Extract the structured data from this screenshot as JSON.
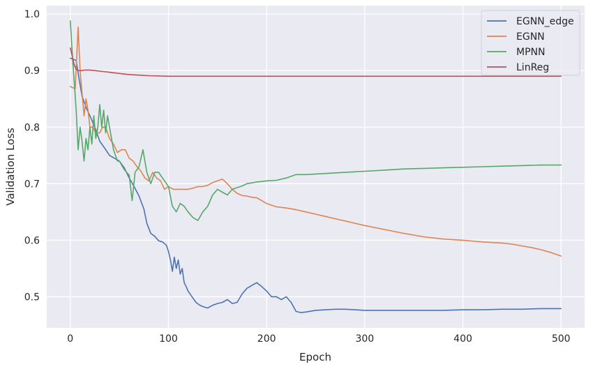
{
  "chart_data": {
    "type": "line",
    "title": "",
    "xlabel": "Epoch",
    "ylabel": "Validation Loss",
    "xlim": [
      -24,
      524
    ],
    "ylim": [
      0.445,
      1.015
    ],
    "xticks": [
      0,
      100,
      200,
      300,
      400,
      500
    ],
    "yticks": [
      0.5,
      0.6,
      0.7,
      0.8,
      0.9,
      1.0
    ],
    "xtick_labels": [
      "0",
      "100",
      "200",
      "300",
      "400",
      "500"
    ],
    "ytick_labels": [
      "0.5",
      "0.6",
      "0.7",
      "0.8",
      "0.9",
      "1.0"
    ],
    "grid": true,
    "legend_position": "top-right",
    "series": [
      {
        "name": "EGNN_edge",
        "color": "#4c72b0",
        "x": [
          0,
          3,
          6,
          9,
          12,
          16,
          20,
          25,
          30,
          35,
          40,
          45,
          50,
          55,
          60,
          65,
          70,
          75,
          78,
          82,
          86,
          90,
          94,
          98,
          100,
          102,
          104,
          106,
          108,
          110,
          112,
          114,
          116,
          118,
          120,
          124,
          128,
          132,
          136,
          140,
          145,
          150,
          155,
          160,
          165,
          170,
          175,
          180,
          185,
          190,
          195,
          200,
          205,
          210,
          215,
          220,
          225,
          230,
          235,
          240,
          250,
          260,
          270,
          280,
          290,
          300,
          320,
          340,
          360,
          380,
          400,
          420,
          440,
          460,
          480,
          500
        ],
        "values": [
          0.922,
          0.92,
          0.918,
          0.885,
          0.855,
          0.835,
          0.82,
          0.8,
          0.775,
          0.763,
          0.75,
          0.745,
          0.74,
          0.728,
          0.71,
          0.695,
          0.678,
          0.655,
          0.63,
          0.612,
          0.607,
          0.599,
          0.597,
          0.591,
          0.58,
          0.565,
          0.545,
          0.57,
          0.55,
          0.565,
          0.54,
          0.55,
          0.525,
          0.518,
          0.51,
          0.5,
          0.49,
          0.485,
          0.482,
          0.48,
          0.485,
          0.488,
          0.49,
          0.495,
          0.488,
          0.49,
          0.505,
          0.515,
          0.52,
          0.525,
          0.518,
          0.51,
          0.5,
          0.5,
          0.495,
          0.5,
          0.49,
          0.474,
          0.472,
          0.473,
          0.476,
          0.477,
          0.478,
          0.478,
          0.477,
          0.476,
          0.476,
          0.476,
          0.476,
          0.476,
          0.477,
          0.477,
          0.478,
          0.478,
          0.479,
          0.479
        ]
      },
      {
        "name": "EGNN",
        "color": "#dd8452",
        "x": [
          0,
          2,
          5,
          8,
          10,
          12,
          14,
          16,
          18,
          20,
          23,
          26,
          30,
          33,
          36,
          40,
          44,
          48,
          52,
          56,
          60,
          64,
          68,
          72,
          76,
          80,
          84,
          88,
          92,
          96,
          100,
          105,
          110,
          115,
          120,
          125,
          130,
          135,
          140,
          145,
          150,
          155,
          160,
          165,
          170,
          175,
          180,
          185,
          190,
          195,
          200,
          210,
          220,
          230,
          240,
          250,
          260,
          270,
          280,
          290,
          300,
          320,
          340,
          360,
          380,
          400,
          420,
          440,
          450,
          460,
          470,
          480,
          490,
          500
        ],
        "values": [
          0.872,
          0.87,
          0.868,
          0.977,
          0.9,
          0.86,
          0.82,
          0.85,
          0.83,
          0.8,
          0.8,
          0.79,
          0.79,
          0.8,
          0.8,
          0.78,
          0.77,
          0.755,
          0.76,
          0.76,
          0.745,
          0.74,
          0.73,
          0.722,
          0.71,
          0.705,
          0.72,
          0.71,
          0.705,
          0.69,
          0.695,
          0.69,
          0.69,
          0.69,
          0.69,
          0.692,
          0.695,
          0.695,
          0.697,
          0.702,
          0.705,
          0.708,
          0.7,
          0.69,
          0.683,
          0.679,
          0.678,
          0.676,
          0.675,
          0.67,
          0.665,
          0.659,
          0.657,
          0.654,
          0.65,
          0.646,
          0.642,
          0.638,
          0.634,
          0.63,
          0.626,
          0.619,
          0.612,
          0.606,
          0.602,
          0.6,
          0.597,
          0.595,
          0.593,
          0.59,
          0.587,
          0.583,
          0.578,
          0.572
        ]
      },
      {
        "name": "MPNN",
        "color": "#55a868",
        "x": [
          0,
          2,
          4,
          6,
          8,
          10,
          12,
          14,
          16,
          18,
          20,
          22,
          24,
          26,
          28,
          30,
          32,
          34,
          36,
          38,
          40,
          42,
          44,
          46,
          48,
          50,
          55,
          60,
          63,
          66,
          70,
          74,
          78,
          82,
          86,
          90,
          94,
          98,
          100,
          104,
          108,
          112,
          116,
          120,
          125,
          130,
          135,
          140,
          145,
          150,
          155,
          160,
          165,
          170,
          175,
          180,
          190,
          200,
          210,
          220,
          230,
          240,
          260,
          280,
          300,
          320,
          340,
          360,
          380,
          400,
          420,
          440,
          460,
          480,
          500
        ],
        "values": [
          0.988,
          0.93,
          0.88,
          0.83,
          0.76,
          0.8,
          0.775,
          0.74,
          0.78,
          0.76,
          0.8,
          0.77,
          0.82,
          0.78,
          0.8,
          0.84,
          0.8,
          0.83,
          0.79,
          0.82,
          0.8,
          0.78,
          0.76,
          0.75,
          0.74,
          0.74,
          0.725,
          0.715,
          0.67,
          0.72,
          0.73,
          0.76,
          0.72,
          0.7,
          0.72,
          0.72,
          0.71,
          0.7,
          0.695,
          0.66,
          0.65,
          0.665,
          0.66,
          0.65,
          0.64,
          0.635,
          0.65,
          0.66,
          0.68,
          0.69,
          0.685,
          0.68,
          0.69,
          0.693,
          0.696,
          0.7,
          0.703,
          0.705,
          0.706,
          0.71,
          0.716,
          0.716,
          0.718,
          0.72,
          0.722,
          0.724,
          0.726,
          0.727,
          0.728,
          0.729,
          0.73,
          0.731,
          0.732,
          0.733,
          0.733
        ]
      },
      {
        "name": "LinReg",
        "color": "#c44e52",
        "x": [
          0,
          2,
          4,
          6,
          8,
          10,
          12,
          15,
          20,
          25,
          30,
          40,
          50,
          60,
          70,
          80,
          100,
          120,
          150,
          200,
          250,
          300,
          350,
          400,
          450,
          500
        ],
        "values": [
          0.94,
          0.925,
          0.91,
          0.902,
          0.9,
          0.9,
          0.9,
          0.901,
          0.901,
          0.9,
          0.899,
          0.897,
          0.895,
          0.893,
          0.892,
          0.891,
          0.89,
          0.89,
          0.89,
          0.89,
          0.89,
          0.89,
          0.89,
          0.89,
          0.89,
          0.89
        ]
      }
    ]
  }
}
